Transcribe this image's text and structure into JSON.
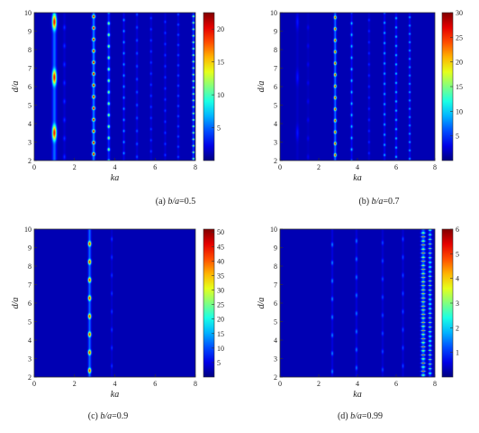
{
  "chart_data": [
    {
      "type": "heatmap",
      "caption": "(a) b/a=0.5",
      "caption_prefix": "(a) ",
      "caption_var": "b/a",
      "caption_value": "=0.5",
      "xlabel": "ka",
      "ylabel": "d/a",
      "xlim": [
        0,
        8
      ],
      "ylim": [
        2,
        10
      ],
      "xticks": [
        "0",
        "2",
        "4",
        "6",
        "8"
      ],
      "yticks": [
        "2",
        "3",
        "4",
        "5",
        "6",
        "7",
        "8",
        "9",
        "10"
      ],
      "colorbar": {
        "range": [
          0,
          22.5
        ],
        "ticks": [
          "5",
          "10",
          "15",
          "20"
        ],
        "tick_values": [
          5,
          10,
          15,
          20
        ]
      },
      "colormap": "jet",
      "bands": [
        {
          "ka": 1.0,
          "peak": 19,
          "width": 0.1,
          "period": 3.0,
          "phase": 3.5
        },
        {
          "ka": 1.5,
          "peak": 3,
          "width": 0.06,
          "period": 1.0,
          "phase": 2.2
        },
        {
          "ka": 2.95,
          "peak": 22,
          "width": 0.07,
          "period": 0.62,
          "phase": 2.35
        },
        {
          "ka": 3.7,
          "peak": 12,
          "width": 0.06,
          "period": 0.62,
          "phase": 2.6
        },
        {
          "ka": 4.45,
          "peak": 6,
          "width": 0.05,
          "period": 0.6,
          "phase": 2.4
        },
        {
          "ka": 5.1,
          "peak": 4,
          "width": 0.05,
          "period": 0.7,
          "phase": 2.2
        },
        {
          "ka": 5.8,
          "peak": 3.5,
          "width": 0.05,
          "period": 0.6,
          "phase": 2.5
        },
        {
          "ka": 6.5,
          "peak": 3.5,
          "width": 0.05,
          "period": 0.6,
          "phase": 2.3
        },
        {
          "ka": 7.15,
          "peak": 4,
          "width": 0.05,
          "period": 0.55,
          "phase": 2.2
        },
        {
          "ka": 7.9,
          "peak": 14,
          "width": 0.05,
          "period": 0.35,
          "phase": 2.1
        }
      ]
    },
    {
      "type": "heatmap",
      "caption": "(b) b/a=0.7",
      "caption_prefix": "(b) ",
      "caption_var": "b/a",
      "caption_value": "=0.7",
      "xlabel": "ka",
      "ylabel": "d/a",
      "xlim": [
        0,
        8
      ],
      "ylim": [
        2,
        10
      ],
      "xticks": [
        "0",
        "2",
        "4",
        "6",
        "8"
      ],
      "yticks": [
        "2",
        "3",
        "4",
        "5",
        "6",
        "7",
        "8",
        "9",
        "10"
      ],
      "colorbar": {
        "range": [
          0,
          30
        ],
        "ticks": [
          "5",
          "10",
          "15",
          "20",
          "25",
          "30"
        ],
        "tick_values": [
          5,
          10,
          15,
          20,
          25,
          30
        ]
      },
      "colormap": "jet",
      "bands": [
        {
          "ka": 0.9,
          "peak": 3,
          "width": 0.07,
          "period": 3.0,
          "phase": 3.5
        },
        {
          "ka": 1.45,
          "peak": 2,
          "width": 0.06,
          "period": 1.0,
          "phase": 2.2
        },
        {
          "ka": 2.85,
          "peak": 27,
          "width": 0.06,
          "period": 0.62,
          "phase": 2.3
        },
        {
          "ka": 3.7,
          "peak": 10,
          "width": 0.05,
          "period": 0.62,
          "phase": 2.6
        },
        {
          "ka": 4.6,
          "peak": 4,
          "width": 0.05,
          "period": 0.6,
          "phase": 2.4
        },
        {
          "ka": 5.4,
          "peak": 9,
          "width": 0.05,
          "period": 0.55,
          "phase": 2.3
        },
        {
          "ka": 6.0,
          "peak": 10,
          "width": 0.05,
          "period": 0.5,
          "phase": 2.2
        },
        {
          "ka": 6.7,
          "peak": 9,
          "width": 0.05,
          "period": 0.45,
          "phase": 2.1
        }
      ]
    },
    {
      "type": "heatmap",
      "caption": "(c) b/a=0.9",
      "caption_prefix": "(c) ",
      "caption_var": "b/a",
      "caption_value": "=0.9",
      "xlabel": "ka",
      "ylabel": "d/a",
      "xlim": [
        0,
        8
      ],
      "ylim": [
        2,
        10
      ],
      "xticks": [
        "0",
        "2",
        "4",
        "6",
        "8"
      ],
      "yticks": [
        "2",
        "3",
        "4",
        "5",
        "6",
        "7",
        "8",
        "9",
        "10"
      ],
      "colorbar": {
        "range": [
          0,
          51
        ],
        "ticks": [
          "5",
          "10",
          "15",
          "20",
          "25",
          "30",
          "35",
          "40",
          "45",
          "50"
        ],
        "tick_values": [
          5,
          10,
          15,
          20,
          25,
          30,
          35,
          40,
          45,
          50
        ]
      },
      "colormap": "jet",
      "bands": [
        {
          "ka": 2.75,
          "peak": 44,
          "width": 0.07,
          "period": 0.98,
          "phase": 2.35
        },
        {
          "ka": 3.85,
          "peak": 8,
          "width": 0.04,
          "period": 0.98,
          "phase": 2.6
        }
      ]
    },
    {
      "type": "heatmap",
      "caption": "(d) b/a=0.99",
      "caption_prefix": "(d) ",
      "caption_var": "b/a",
      "caption_value": "=0.99",
      "xlabel": "ka",
      "ylabel": "d/a",
      "xlim": [
        0,
        8
      ],
      "ylim": [
        2,
        10
      ],
      "xticks": [
        "0",
        "2",
        "4",
        "6",
        "8"
      ],
      "yticks": [
        "2",
        "3",
        "4",
        "5",
        "6",
        "7",
        "8",
        "9",
        "10"
      ],
      "colorbar": {
        "range": [
          0,
          6
        ],
        "ticks": [
          "1",
          "2",
          "3",
          "4",
          "5",
          "6"
        ],
        "tick_values": [
          1,
          2,
          3,
          4,
          5,
          6
        ]
      },
      "colormap": "jet",
      "bands": [
        {
          "ka": 2.7,
          "peak": 1.4,
          "width": 0.05,
          "period": 0.98,
          "phase": 2.3
        },
        {
          "ka": 3.95,
          "peak": 1.3,
          "width": 0.05,
          "period": 0.98,
          "phase": 2.5
        },
        {
          "ka": 5.3,
          "peak": 1.0,
          "width": 0.05,
          "period": 0.98,
          "phase": 2.4
        },
        {
          "ka": 6.35,
          "peak": 1.0,
          "width": 0.05,
          "period": 0.98,
          "phase": 2.6
        },
        {
          "ka": 7.4,
          "peak": 4.5,
          "width": 0.1,
          "period": 0.22,
          "phase": 2.1
        },
        {
          "ka": 7.75,
          "peak": 3.5,
          "width": 0.08,
          "period": 0.25,
          "phase": 2.2
        }
      ]
    }
  ]
}
